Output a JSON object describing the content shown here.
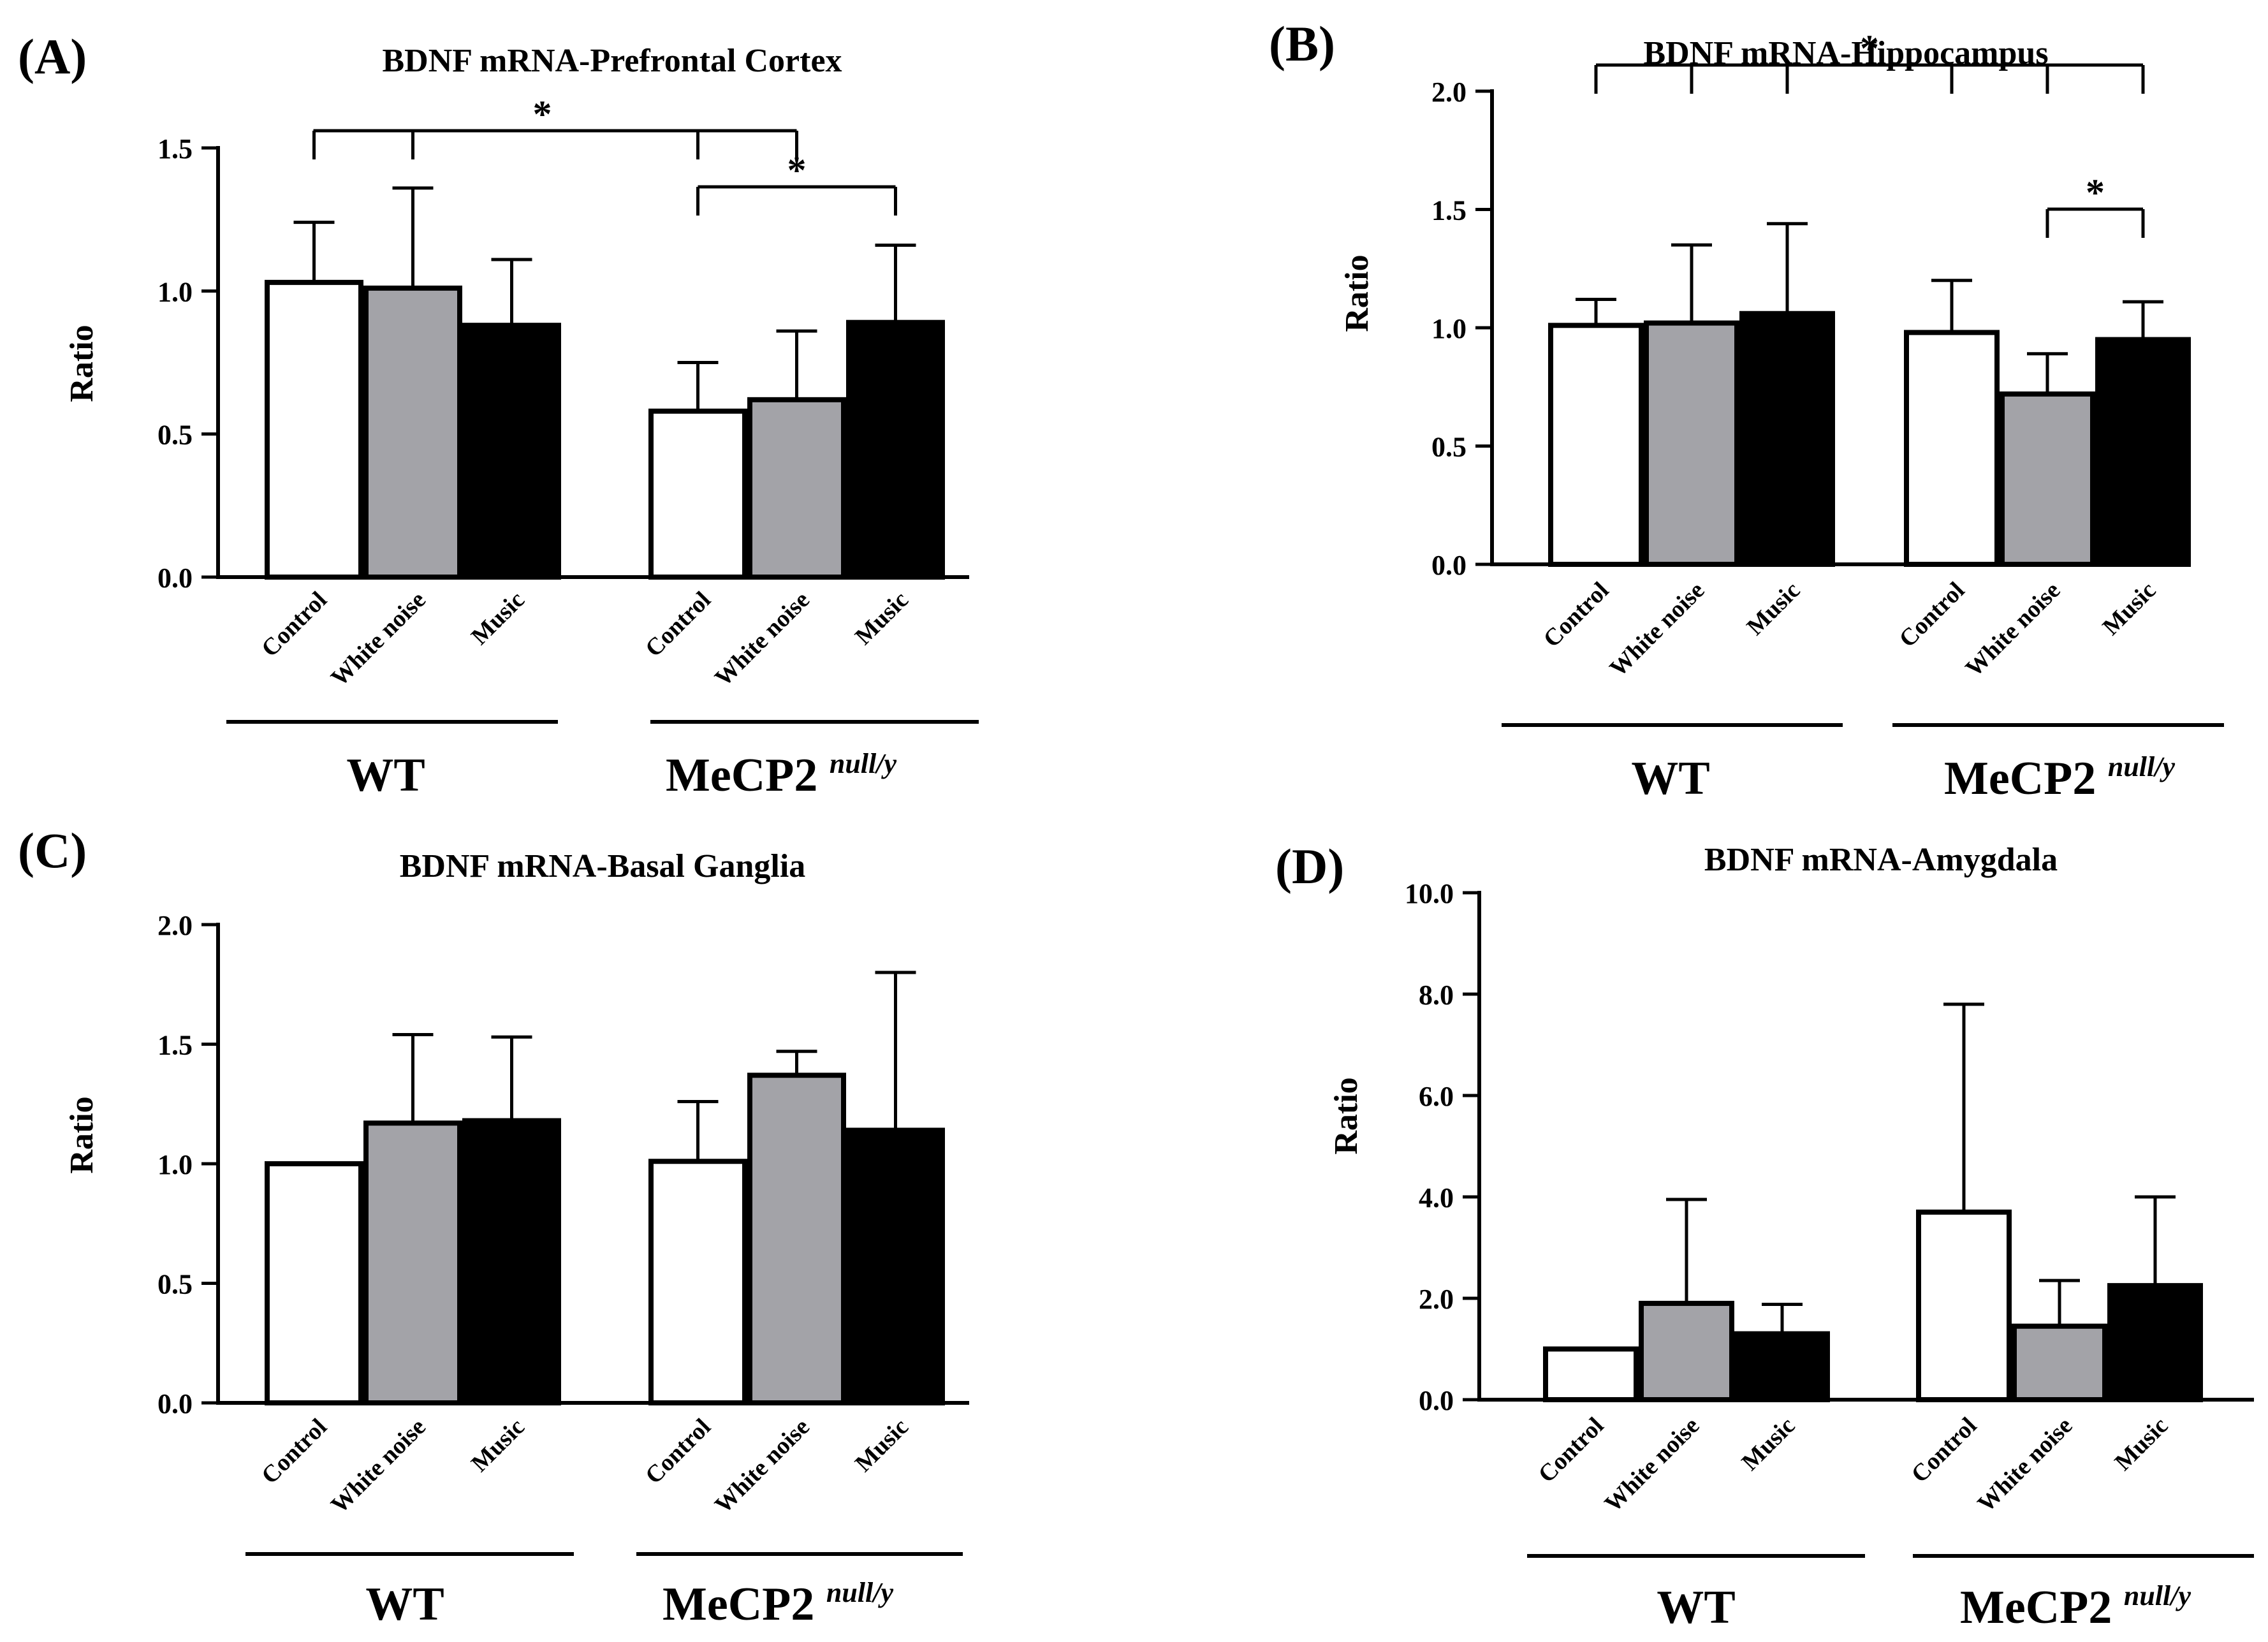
{
  "figure": {
    "ylabel": "Ratio",
    "group_labels": [
      "WT",
      "MeCP2"
    ],
    "superscript": "null/y"
  },
  "chart_data": [
    {
      "panel": "(A)",
      "type": "bar",
      "title": "BDNF mRNA-Prefrontal Cortex",
      "ylabel": "Ratio",
      "ylim": [
        0,
        1.5
      ],
      "yticks": [
        "0.0",
        "0.5",
        "1.0",
        "1.5"
      ],
      "categories": [
        "Control",
        "White noise",
        "Music",
        "Control",
        "White noise",
        "Music"
      ],
      "groups": [
        "WT",
        "MeCP2 null/y"
      ],
      "fills": [
        "#ffffff",
        "#a3a3a8",
        "#000000",
        "#ffffff",
        "#a3a3a8",
        "#000000"
      ],
      "values": [
        1.03,
        1.01,
        0.88,
        0.58,
        0.62,
        0.89
      ],
      "errors": [
        0.21,
        0.35,
        0.23,
        0.17,
        0.24,
        0.27
      ],
      "significance": [
        {
          "bars": [
            0,
            1,
            3,
            4
          ],
          "label": "*"
        },
        {
          "bars": [
            3,
            5
          ],
          "label": "*"
        }
      ]
    },
    {
      "panel": "(B)",
      "type": "bar",
      "title": "BDNF mRNA-Hippocampus",
      "ylabel": "Ratio",
      "ylim": [
        0,
        2.0
      ],
      "yticks": [
        "0.0",
        "0.5",
        "1.0",
        "1.5",
        "2.0"
      ],
      "categories": [
        "Control",
        "White noise",
        "Music",
        "Control",
        "White noise",
        "Music"
      ],
      "groups": [
        "WT",
        "MeCP2 null/y"
      ],
      "fills": [
        "#ffffff",
        "#a3a3a8",
        "#000000",
        "#ffffff",
        "#a3a3a8",
        "#000000"
      ],
      "values": [
        1.01,
        1.02,
        1.06,
        0.98,
        0.72,
        0.95
      ],
      "errors": [
        0.11,
        0.33,
        0.38,
        0.22,
        0.17,
        0.16
      ],
      "significance": [
        {
          "bars": [
            0,
            1,
            2,
            3,
            4,
            5
          ],
          "label": "*"
        },
        {
          "bars": [
            4,
            5
          ],
          "label": "*"
        }
      ]
    },
    {
      "panel": "(C)",
      "type": "bar",
      "title": "BDNF mRNA-Basal Ganglia",
      "ylabel": "Ratio",
      "ylim": [
        0,
        2.0
      ],
      "yticks": [
        "0.0",
        "0.5",
        "1.0",
        "1.5",
        "2.0"
      ],
      "categories": [
        "Control",
        "White noise",
        "Music",
        "Control",
        "White noise",
        "Music"
      ],
      "groups": [
        "WT",
        "MeCP2 null/y"
      ],
      "fills": [
        "#ffffff",
        "#a3a3a8",
        "#000000",
        "#ffffff",
        "#a3a3a8",
        "#000000"
      ],
      "values": [
        1.0,
        1.17,
        1.18,
        1.01,
        1.37,
        1.14
      ],
      "errors": [
        0.0,
        0.37,
        0.35,
        0.25,
        0.1,
        0.66
      ],
      "significance": []
    },
    {
      "panel": "(D)",
      "type": "bar",
      "title": "BDNF mRNA-Amygdala",
      "ylabel": "Ratio",
      "ylim": [
        0,
        10.0
      ],
      "yticks": [
        "0.0",
        "2.0",
        "4.0",
        "6.0",
        "8.0",
        "10.0"
      ],
      "categories": [
        "Control",
        "White noise",
        "Music",
        "Control",
        "White noise",
        "Music"
      ],
      "groups": [
        "WT",
        "MeCP2 null/y"
      ],
      "fills": [
        "#ffffff",
        "#a3a3a8",
        "#000000",
        "#ffffff",
        "#a3a3a8",
        "#000000"
      ],
      "values": [
        1.0,
        1.9,
        1.3,
        3.7,
        1.45,
        2.25
      ],
      "errors": [
        0.0,
        2.05,
        0.58,
        4.1,
        0.9,
        1.75
      ],
      "significance": []
    }
  ]
}
